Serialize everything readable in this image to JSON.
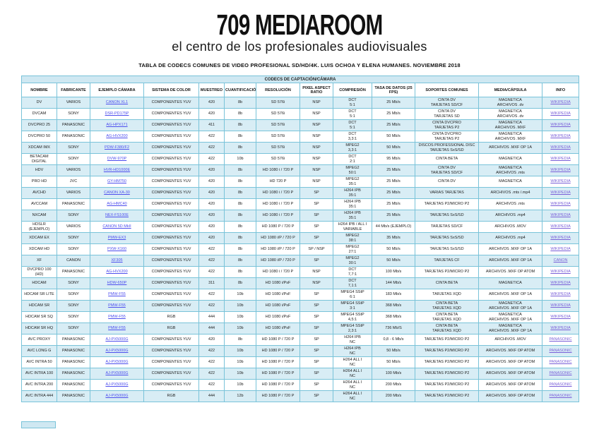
{
  "header": {
    "title": "709 MEDIAROOM",
    "subtitle": "el centro de los profesionales audiovisuales",
    "byline": "TABLA DE CODECS COMUNES DE VIDEO PROFESIONAL SD/HD/4K. LUIS OCHOA Y ELENA HUMANES. NOVIEMBRE 2018"
  },
  "colors": {
    "row_alt_blue": "#d8edf5",
    "banner_blue": "#cfe8f2",
    "table_border": "#79c3d9",
    "camera_link": "#4d4dee",
    "info_link": "#7a5fd8"
  },
  "table": {
    "section_title": "CODECS DE CAPTACIÓN/CÁMARA",
    "columns": [
      "NOMBRE",
      "FABRICANTE",
      "EJEMPLO CÁMARA",
      "SISTEMA DE COLOR",
      "MUESTREO",
      "CUANTIFICACIÓN",
      "RESOLUCIÓN",
      "PIXEL ASPECT RATIO",
      "COMPRESIÓN",
      "TASA DE DATOS (25 FPS)",
      "SOPORTES COMUNES",
      "MEDIA/CÁPSULA",
      "INFO"
    ],
    "rows": [
      {
        "nombre": "DV",
        "fabricante": "VARIOS",
        "camara": "CANON XL1",
        "color": "COMPONENTES YUV",
        "muestreo": "420",
        "cuantificacion": "8b",
        "resolucion": "SD 576i",
        "par": "NSP",
        "compresion": "DCT\n5:1",
        "tasa": "25 Mb/s",
        "soportes": "CINTA DV\nTARJETAS SD/CF",
        "media": "MAGNETICA\nARCHIVOS .dv",
        "info": "WIKIPEDIA"
      },
      {
        "nombre": "DVCAM",
        "fabricante": "SONY",
        "camara": "DSR-PD175P",
        "color": "COMPONENTES YUV",
        "muestreo": "420",
        "cuantificacion": "8b",
        "resolucion": "SD 576i",
        "par": "NSP",
        "compresion": "DCT\n5:1",
        "tasa": "25 Mb/s",
        "soportes": "CINTA DV\nTARJETAS SD",
        "media": "MAGNETICA\nARCHIVOS .dv",
        "info": "WIKIPEDIA"
      },
      {
        "nombre": "DVCPRO 25",
        "fabricante": "PANASONIC",
        "camara": "AG-HPX171",
        "color": "COMPONENTES YUV",
        "muestreo": "411",
        "cuantificacion": "8b",
        "resolucion": "SD 576i",
        "par": "NSP",
        "compresion": "DCT\n5:1",
        "tasa": "25 Mb/s",
        "soportes": "CINTA DVCPRO\nTARJETAS P2",
        "media": "MAGNETICA\nARCHIVOS .MXF",
        "info": "WIKIPEDIA"
      },
      {
        "nombre": "DVCPRO 50",
        "fabricante": "PANASONIC",
        "camara": "AG-HVX200",
        "color": "COMPONENTES YUV",
        "muestreo": "422",
        "cuantificacion": "8b",
        "resolucion": "SD 576i",
        "par": "NSP",
        "compresion": "DCT\n3,3:1",
        "tasa": "50 Mb/s",
        "soportes": "CINTA DVCPRO\nTARJETAS P2",
        "media": "MAGNETICA\nARCHIVOS .MXF",
        "info": "WIKIPEDIA"
      },
      {
        "nombre": "XDCAM IMX",
        "fabricante": "SONY",
        "camara": "PDW-F380/F2",
        "color": "COMPONENTES YUV",
        "muestreo": "422",
        "cuantificacion": "8b",
        "resolucion": "SD 576i",
        "par": "NSP",
        "compresion": "MPEG2\n3,3:1",
        "tasa": "50 Mb/s",
        "soportes": "DISCOS PROFESSIONAL DISC\nTARJETAS SxS/SD",
        "media": "ARCHIVOS .MXF OP 1A",
        "info": "WIKIPEDIA"
      },
      {
        "nombre": "BETACAM DIGITAL",
        "fabricante": "SONY",
        "camara": "DVW-970P",
        "color": "COMPONENTES YUV",
        "muestreo": "422",
        "cuantificacion": "10b",
        "resolucion": "SD 576i",
        "par": "NSP",
        "compresion": "DCT\n2:1",
        "tasa": "95 Mb/s",
        "soportes": "CINTA BETA",
        "media": "MAGNETICA",
        "info": "WIKIPEDIA"
      },
      {
        "nombre": "HDV",
        "fabricante": "VARIOS",
        "camara": "HVR-HD1000E",
        "color": "COMPONENTES YUV",
        "muestreo": "420",
        "cuantificacion": "8b",
        "resolucion": "HD 1080 i / 720 P",
        "par": "NSP",
        "compresion": "MPEG2\n50:1",
        "tasa": "25 Mb/s",
        "soportes": "CINTA DV\nTARJETAS SD/CF",
        "media": "MAGNETICA\nARCHIVOS .mts",
        "info": "WIKIPEDIA"
      },
      {
        "nombre": "PRO HD",
        "fabricante": "JVC",
        "camara": "GY-HM750",
        "color": "COMPONENTES YUV",
        "muestreo": "420",
        "cuantificacion": "8b",
        "resolucion": "HD 720 P",
        "par": "NSP",
        "compresion": "MPEG2\n35:1",
        "tasa": "25 Mb/s",
        "soportes": "CINTA DV",
        "media": "MAGNETICA",
        "info": "WIKIPEDIA"
      },
      {
        "nombre": "AVCHD",
        "fabricante": "VARIOS",
        "camara": "CANON XA-30",
        "color": "COMPONENTES YUV",
        "muestreo": "420",
        "cuantificacion": "8b",
        "resolucion": "HD 1080 i / 720 P",
        "par": "SP",
        "compresion": "H264 IPB\n35:1",
        "tasa": "25 Mb/s",
        "soportes": "VARIAS TARJETAS",
        "media": "ARCHIVOS .mts /.mp4",
        "info": "WIKIPEDIA"
      },
      {
        "nombre": "AVCCAM",
        "fabricante": "PANASONIC",
        "camara": "AG-HMC40",
        "color": "COMPONENTES YUV",
        "muestreo": "420",
        "cuantificacion": "8b",
        "resolucion": "HD 1080 i / 720 P",
        "par": "SP",
        "compresion": "H264 IPB\n35:1",
        "tasa": "25 Mb/s",
        "soportes": "TARJETAS P2/MICRO P2",
        "media": "ARCHIVOS .mts",
        "info": "WIKIPEDIA"
      },
      {
        "nombre": "NXCAM",
        "fabricante": "SONY",
        "camara": "NEX-FS100E",
        "color": "COMPONENTES YUV",
        "muestreo": "420",
        "cuantificacion": "8b",
        "resolucion": "HD 1080 i / 720 P",
        "par": "SP",
        "compresion": "H264 IPB\n35:1",
        "tasa": "25 Mb/s",
        "soportes": "TARJETAS SxS/SD",
        "media": "ARCHIVOS .mp4",
        "info": "WIKIPEDIA"
      },
      {
        "nombre": "HDSLR (EJEMPLO)",
        "fabricante": "VARIOS",
        "camara": "CANON 5D MkII",
        "color": "COMPONENTES YUV",
        "muestreo": "420",
        "cuantificacion": "8b",
        "resolucion": "HD 1080 P / 720 P",
        "par": "SP",
        "compresion": "H264 IPB / ALL I\nVARIABLE",
        "tasa": "44 Mb/s (EJEMPLO)",
        "soportes": "TARJETAS SD/CF",
        "media": "ARCHIVOS .MOV",
        "info": "WIKIPEDIA"
      },
      {
        "nombre": "XDCAM EX",
        "fabricante": "SONY",
        "camara": "PMW-EX3",
        "color": "COMPONENTES YUV",
        "muestreo": "420",
        "cuantificacion": "8b",
        "resolucion": "HD 1080 i/P / 720 P",
        "par": "SP",
        "compresion": "MPEG2\n38:1",
        "tasa": "35 Mb/s",
        "soportes": "TARJETAS SxS/SD",
        "media": "ARCHIVOS .mp4",
        "info": "WIKIPEDIA"
      },
      {
        "nombre": "XDCAM HD",
        "fabricante": "SONY",
        "camara": "PXW-X160",
        "color": "COMPONENTES YUV",
        "muestreo": "422",
        "cuantificacion": "8b",
        "resolucion": "HD 1080 i/P / 720 P",
        "par": "SP / NSP",
        "compresion": "MPEG2\n27:1",
        "tasa": "50 Mb/s",
        "soportes": "TARJETAS SxS/SD",
        "media": "ARCHIVOS .MXF OP 1A",
        "info": "WIKIPEDIA"
      },
      {
        "nombre": "XF",
        "fabricante": "CANON",
        "camara": "XF305",
        "color": "COMPONENTES YUV",
        "muestreo": "422",
        "cuantificacion": "8b",
        "resolucion": "HD 1080 i/P / 720 P",
        "par": "SP",
        "compresion": "MPEG2\n30:1",
        "tasa": "50 Mb/s",
        "soportes": "TARJETAS CF",
        "media": "ARCHIVOS .MXF OP 1A",
        "info": "CANON"
      },
      {
        "nombre": "DVCPRO 100 (HD)",
        "fabricante": "PANASONIC",
        "camara": "AG-HVX200",
        "color": "COMPONENTES YUV",
        "muestreo": "422",
        "cuantificacion": "8b",
        "resolucion": "HD 1080 i / 720 P",
        "par": "NSP",
        "compresion": "DCT\n7,7:1",
        "tasa": "100 Mb/s",
        "soportes": "TARJETAS P2/MICRO P2",
        "media": "ARCHIVOS .MXF OP ATOM",
        "info": "WIKIPEDIA"
      },
      {
        "nombre": "HDCAM",
        "fabricante": "SONY",
        "camara": "HDW-650P",
        "color": "COMPONENTES YUV",
        "muestreo": "311",
        "cuantificacion": "8b",
        "resolucion": "HD 1080 i/PsF",
        "par": "NSP",
        "compresion": "DCT\n7,1:1",
        "tasa": "144 Mb/s",
        "soportes": "CINTA BETA",
        "media": "MAGNETICA",
        "info": "WIKIPEDIA"
      },
      {
        "nombre": "HDCAM SR LITE",
        "fabricante": "SONY",
        "camara": "PMW-F55",
        "color": "COMPONENTES YUV",
        "muestreo": "422",
        "cuantificacion": "10b",
        "resolucion": "HD 1080 i/PsF",
        "par": "SP",
        "compresion": "MPEG4 SStP\n6:1",
        "tasa": "183 Mb/s",
        "soportes": "TARJETAS XQD",
        "media": "ARCHIVOS .MXF OP 1A",
        "info": "WIKIPEDIA"
      },
      {
        "nombre": "HDCAM SR",
        "fabricante": "SONY",
        "camara": "PMW-F55",
        "color": "COMPONENTES YUV",
        "muestreo": "422",
        "cuantificacion": "10b",
        "resolucion": "HD 1080 i/PsF",
        "par": "SP",
        "compresion": "MPEG4 SStP\n3:1",
        "tasa": "368 Mb/s",
        "soportes": "CINTA BETA\nTARJETAS XQD",
        "media": "MAGNETICA\nARCHIVOS .MXF OP 1A",
        "info": "WIKIPEDIA"
      },
      {
        "nombre": "HDCAM SR SQ",
        "fabricante": "SONY",
        "camara": "PMW-F55",
        "color": "RGB",
        "muestreo": "444",
        "cuantificacion": "10b",
        "resolucion": "HD 1080 i/PsF",
        "par": "SP",
        "compresion": "MPEG4 SStP\n4,5:1",
        "tasa": "368 Mb/s",
        "soportes": "CINTA BETA\nTARJETAS XQD",
        "media": "MAGNETICA\nARCHIVOS .MXF OP 1A",
        "info": "WIKIPEDIA"
      },
      {
        "nombre": "HDCAM SR HQ",
        "fabricante": "SONY",
        "camara": "PMW-F55",
        "color": "RGB",
        "muestreo": "444",
        "cuantificacion": "10b",
        "resolucion": "HD 1080 i/PsF",
        "par": "SP",
        "compresion": "MPEG4 SStP\n2,3:1",
        "tasa": "736 Mb/S",
        "soportes": "CINTA BETA\nTARJETAS XQD",
        "media": "MAGNETICA\nARCHIVOS .MXF OP 1A",
        "info": "WIKIPEDIA"
      },
      {
        "nombre": "AVC PROXY",
        "fabricante": "PANASONIC",
        "camara": "AJ-PX5000G",
        "color": "COMPONENTES YUV",
        "muestreo": "420",
        "cuantificacion": "8b",
        "resolucion": "HD 1080 P / 720 P",
        "par": "SP",
        "compresion": "H264 IPB\nNC",
        "tasa": "0,8 - 6 Mb/s",
        "soportes": "TARJETAS P2/MICRO P2",
        "media": "ARCHIVOS .MOV",
        "info": "PANASONIC"
      },
      {
        "nombre": "AVC LONG G",
        "fabricante": "PANASONIC",
        "camara": "AJ-PX5000G",
        "color": "COMPONENTES YUV",
        "muestreo": "422",
        "cuantificacion": "10b",
        "resolucion": "HD 1080 P / 720 P",
        "par": "SP",
        "compresion": "H264 IPB\nNC",
        "tasa": "50 Mb/s",
        "soportes": "TARJETAS P2/MICRO P2",
        "media": "ARCHIVOS .MXF OP ATOM",
        "info": "PANASONIC"
      },
      {
        "nombre": "AVC INTRA 50",
        "fabricante": "PANASONIC",
        "camara": "AJ-PX5000G",
        "color": "COMPONENTES YUV",
        "muestreo": "422",
        "cuantificacion": "10b",
        "resolucion": "HD 1080 P / 720 P",
        "par": "SP",
        "compresion": "H264 ALL I\nNC",
        "tasa": "50 Mb/s",
        "soportes": "TARJETAS P2/MICRO P2",
        "media": "ARCHIVOS .MXF OP ATOM",
        "info": "PANASONIC"
      },
      {
        "nombre": "AVC INTRA 100",
        "fabricante": "PANASONIC",
        "camara": "AJ-PX5000G",
        "color": "COMPONENTES YUV",
        "muestreo": "422",
        "cuantificacion": "10b",
        "resolucion": "HD 1080 P / 720 P",
        "par": "SP",
        "compresion": "H264 ALL I\nNC",
        "tasa": "100 Mb/s",
        "soportes": "TARJETAS P2/MICRO P2",
        "media": "ARCHIVOS .MXF OP ATOM",
        "info": "PANASONIC"
      },
      {
        "nombre": "AVC INTRA 200",
        "fabricante": "PANASONIC",
        "camara": "AJ-PX5000G",
        "color": "COMPONENTES YUV",
        "muestreo": "422",
        "cuantificacion": "10b",
        "resolucion": "HD 1080 P / 720 P",
        "par": "SP",
        "compresion": "H264 ALL I\nNC",
        "tasa": "200 Mb/s",
        "soportes": "TARJETAS P2/MICRO P2",
        "media": "ARCHIVOS .MXF OP ATOM",
        "info": "PANASONIC"
      },
      {
        "nombre": "AVC INTRA 444",
        "fabricante": "PANASONIC",
        "camara": "AJ-PX5000G",
        "color": "RGB",
        "muestreo": "444",
        "cuantificacion": "12b",
        "resolucion": "HD 1080 P / 720 P",
        "par": "SP",
        "compresion": "H264 ALL I\nNC",
        "tasa": "200 Mb/s",
        "soportes": "TARJETAS P2/MICRO P2",
        "media": "ARCHIVOS .MXF OP ATOM",
        "info": "PANASONIC"
      }
    ]
  }
}
